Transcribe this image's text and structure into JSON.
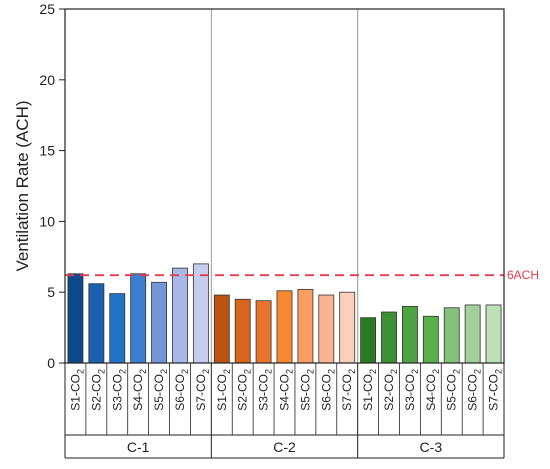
{
  "chart_data": {
    "type": "bar",
    "ylabel": "Ventilation Rate (ACH)",
    "ylim": [
      0,
      25
    ],
    "yticks": [
      "0",
      "5",
      "10",
      "15",
      "20",
      "25"
    ],
    "grid": false,
    "groups": [
      {
        "name": "C-1",
        "categories": [
          "S1-CO2",
          "S2-CO2",
          "S3-CO2",
          "S4-CO2",
          "S5-CO2",
          "S6-CO2",
          "S7-CO2"
        ],
        "values": [
          6.3,
          5.6,
          4.9,
          6.3,
          5.7,
          6.7,
          7.0
        ],
        "colors": [
          "#0b4a8c",
          "#1a5fb0",
          "#1f74c8",
          "#3a7fd0",
          "#7596d6",
          "#a8b8e6",
          "#c4cdee"
        ]
      },
      {
        "name": "C-2",
        "categories": [
          "S1-CO2",
          "S2-CO2",
          "S3-CO2",
          "S4-CO2",
          "S5-CO2",
          "S6-CO2",
          "S7-CO2"
        ],
        "values": [
          4.8,
          4.5,
          4.4,
          5.1,
          5.2,
          4.8,
          5.0
        ],
        "colors": [
          "#bb5313",
          "#d9661c",
          "#e9742a",
          "#f7882f",
          "#f99d63",
          "#f9b494",
          "#fad0bb"
        ]
      },
      {
        "name": "C-3",
        "categories": [
          "S1-CO2",
          "S2-CO2",
          "S3-CO2",
          "S4-CO2",
          "S5-CO2",
          "S6-CO2",
          "S7-CO2"
        ],
        "values": [
          3.2,
          3.6,
          4.0,
          3.3,
          3.9,
          4.1,
          4.1
        ],
        "colors": [
          "#2a7a24",
          "#3d8f34",
          "#4ea344",
          "#58b04d",
          "#86c17c",
          "#a3cf9b",
          "#bde0b6"
        ]
      }
    ],
    "reference_line": {
      "value": 6.2,
      "label": "6ACH",
      "color": "#e8394a"
    }
  }
}
